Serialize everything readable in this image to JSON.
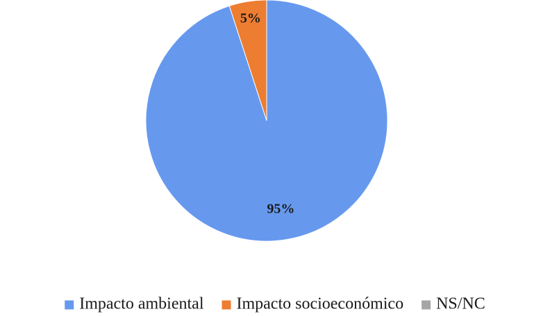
{
  "chart_data": {
    "type": "pie",
    "title": "",
    "categories": [
      "Impacto ambiental",
      "Impacto socioeconómico",
      "NS/NC"
    ],
    "values": [
      95,
      5,
      0
    ],
    "data_labels": [
      "95%",
      "5%",
      ""
    ],
    "colors": [
      "#6699ee",
      "#ed7d31",
      "#a5a5a5"
    ],
    "legend_position": "bottom",
    "start_angle": "top, clockwise"
  }
}
